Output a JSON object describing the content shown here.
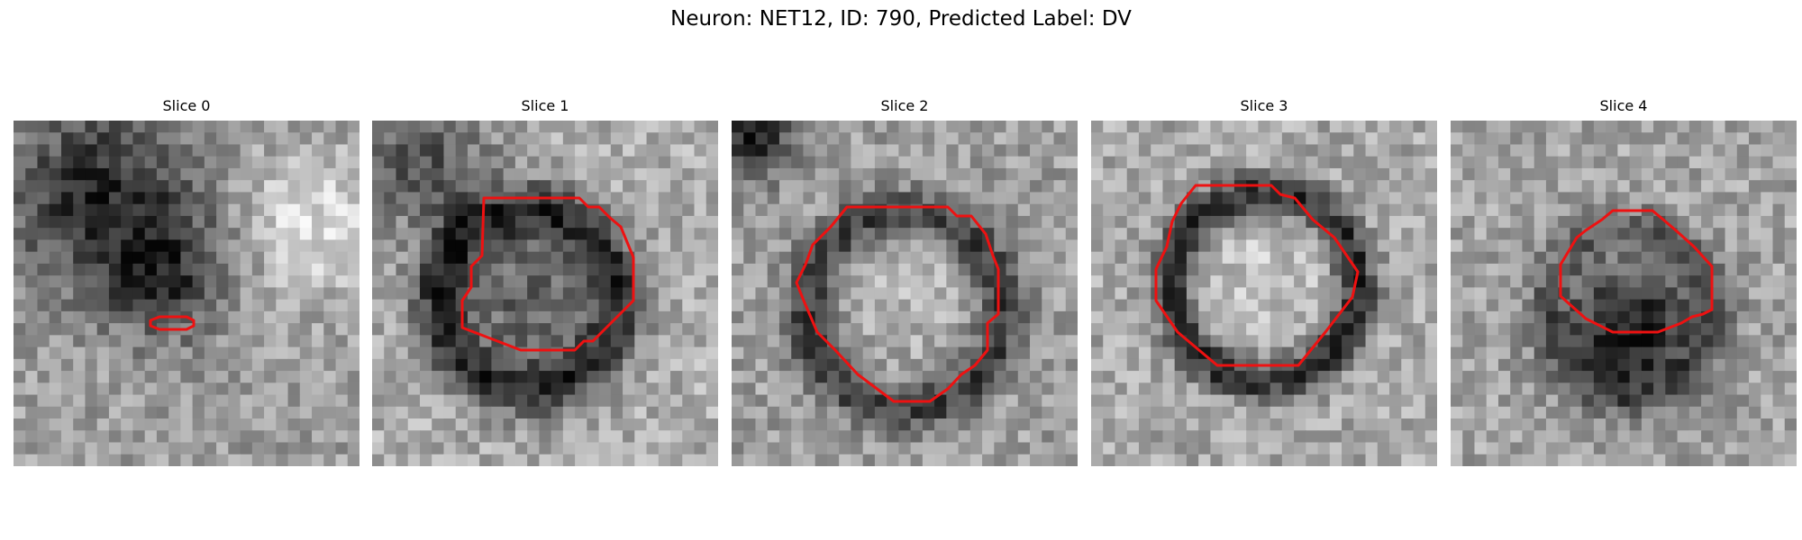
{
  "figure": {
    "title": "Neuron: NET12, ID: 790, Predicted Label: DV"
  },
  "colors": {
    "contour": "#ee1111"
  },
  "panels": [
    {
      "title": "Slice 0",
      "seed": 11,
      "pattern": "slice0"
    },
    {
      "title": "Slice 1",
      "seed": 23,
      "pattern": "ringdark"
    },
    {
      "title": "Slice 2",
      "seed": 37,
      "pattern": "ringlight"
    },
    {
      "title": "Slice 3",
      "seed": 41,
      "pattern": "ringbright"
    },
    {
      "title": "Slice 4",
      "seed": 53,
      "pattern": "ringsmall"
    }
  ]
}
